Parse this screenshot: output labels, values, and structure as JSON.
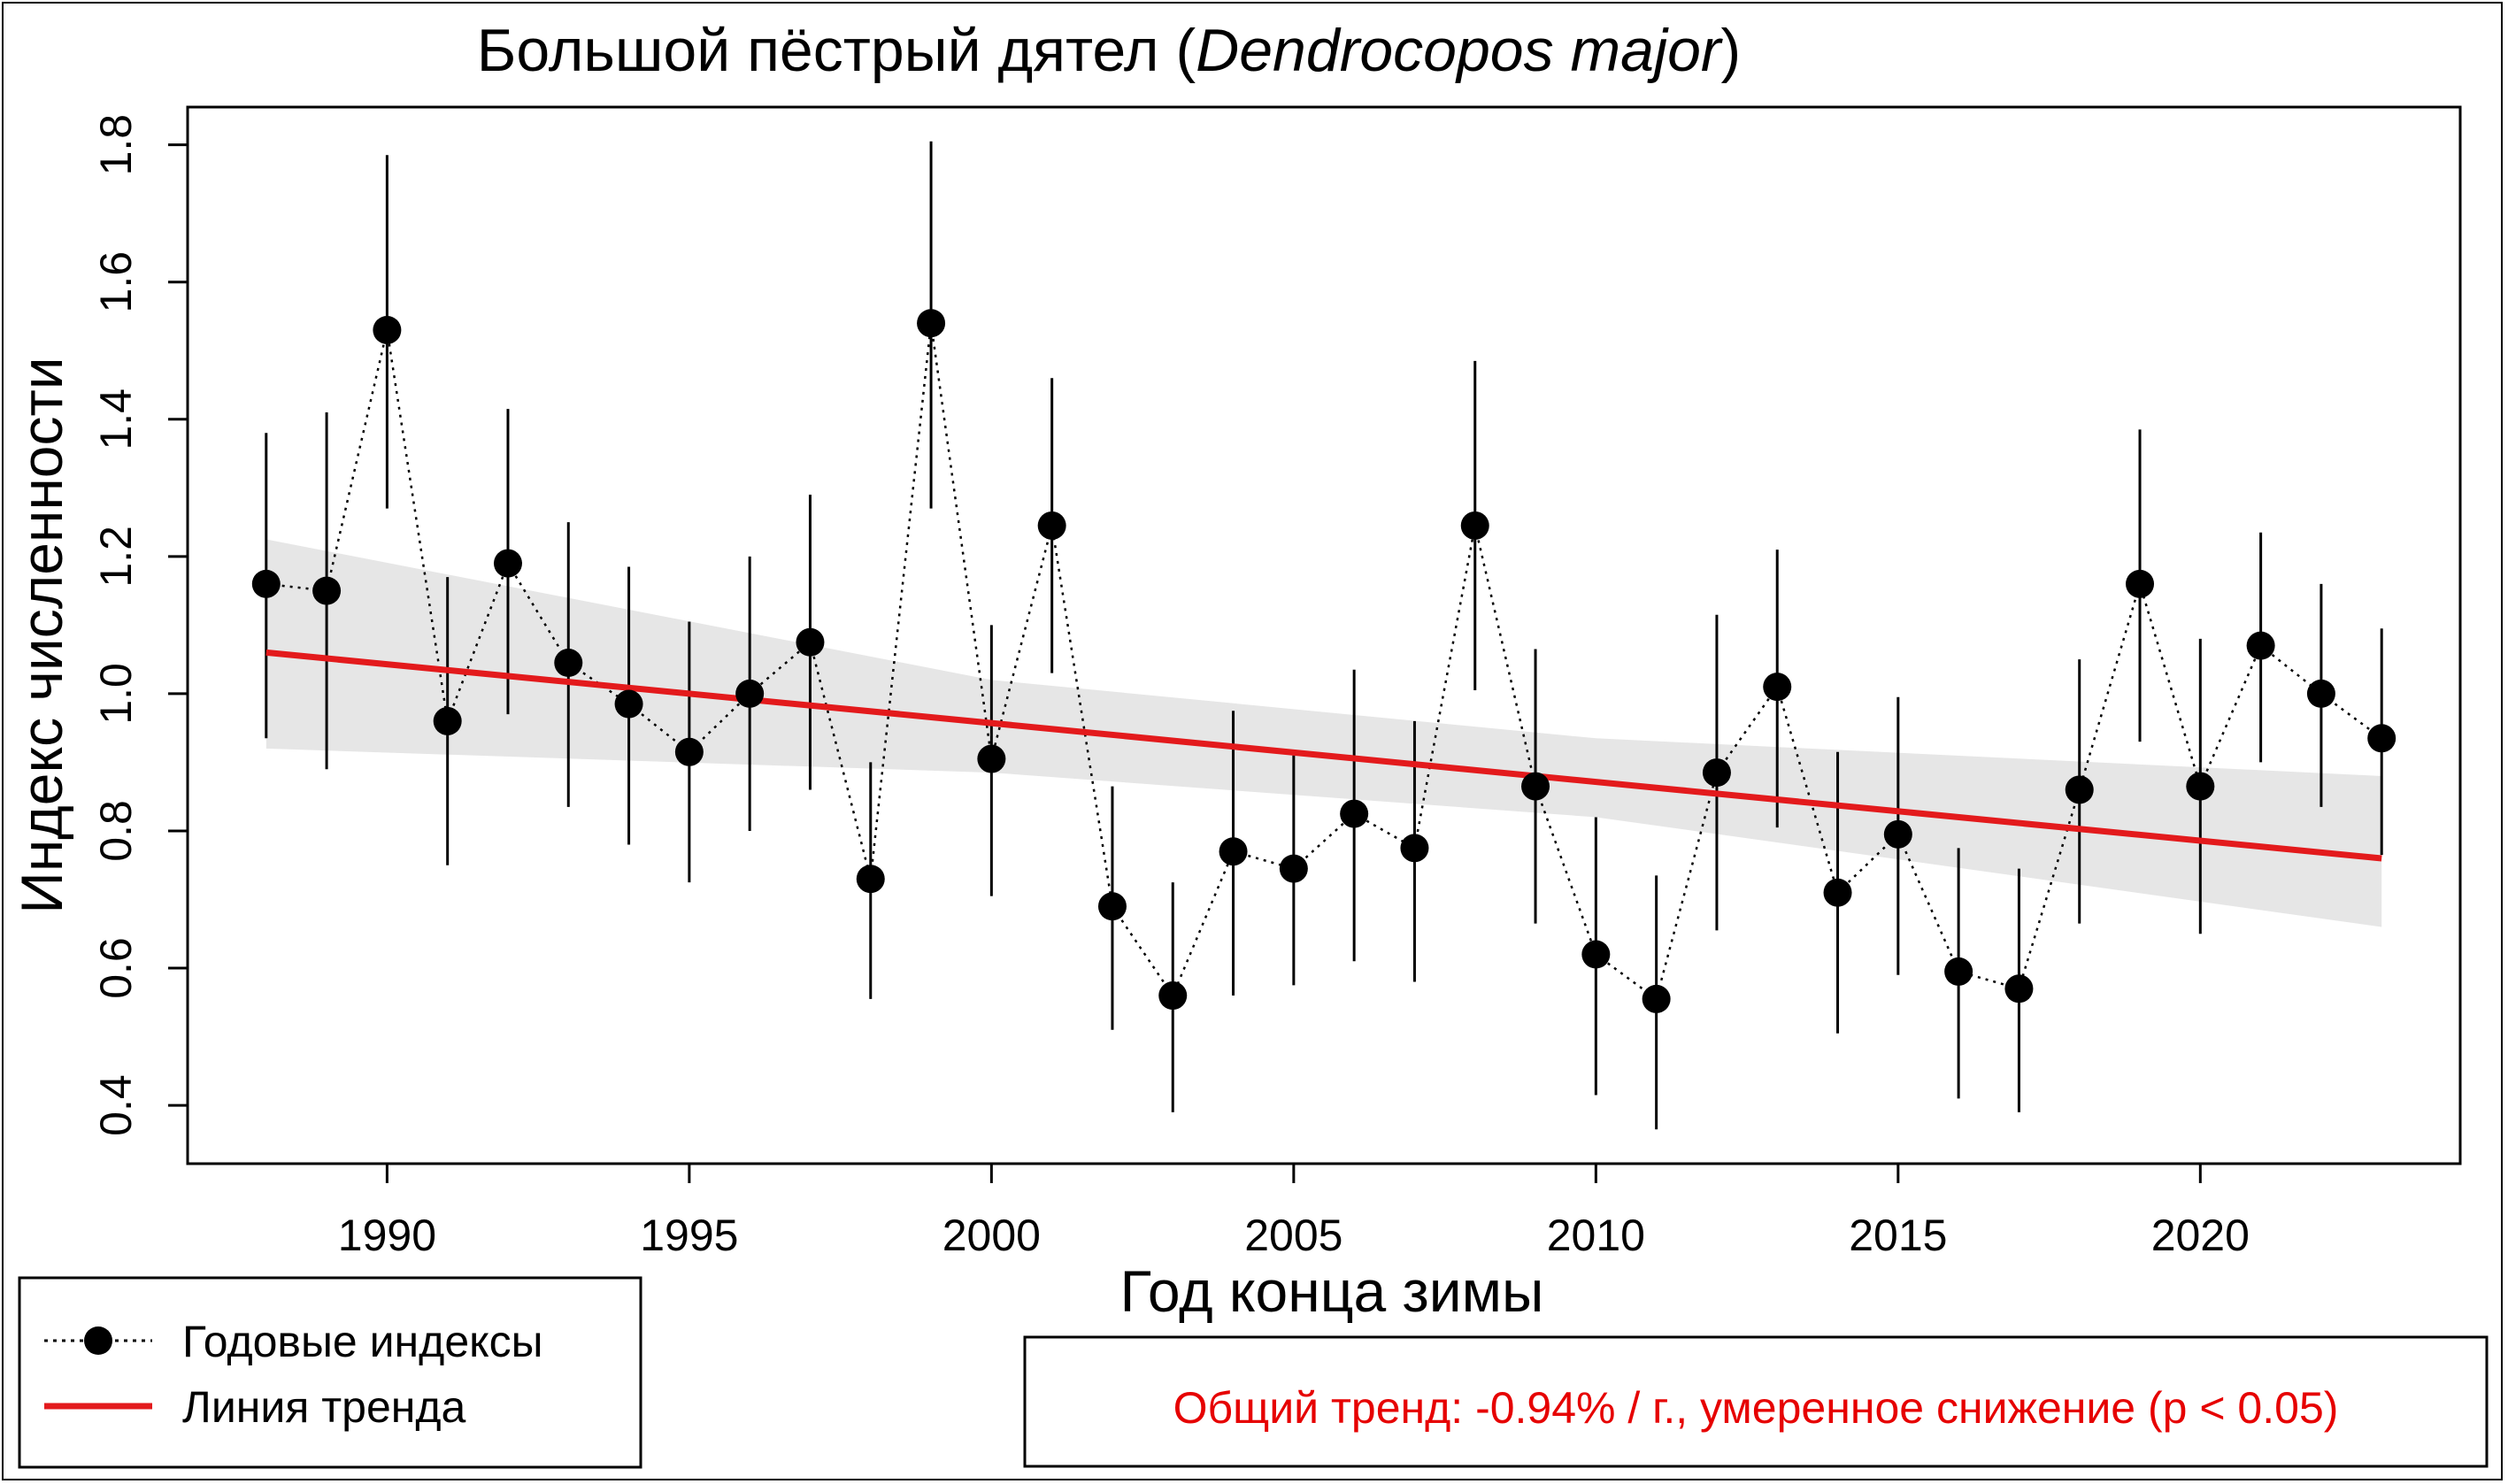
{
  "chart_data": {
    "type": "line",
    "title_main": "Большой пёстрый дятел (",
    "title_species": "Dendrocopos major",
    "title_end": ")",
    "xlabel": "Год конца зимы",
    "ylabel": "Индекс численности",
    "xlim": [
      1986.7,
      2024.3
    ],
    "ylim": [
      0.315,
      1.855
    ],
    "x_ticks": [
      "1990",
      "1995",
      "2000",
      "2005",
      "2010",
      "2015",
      "2020"
    ],
    "y_ticks": [
      "0.4",
      "0.6",
      "0.8",
      "1.0",
      "1.2",
      "1.4",
      "1.6",
      "1.8"
    ],
    "series": [
      {
        "name": "Годовые индексы",
        "years": [
          1988,
          1989,
          1990,
          1991,
          1992,
          1993,
          1994,
          1995,
          1996,
          1997,
          1998,
          1999,
          2000,
          2001,
          2002,
          2003,
          2004,
          2005,
          2006,
          2007,
          2008,
          2009,
          2010,
          2011,
          2012,
          2013,
          2014,
          2015,
          2016,
          2017,
          2018,
          2019,
          2020,
          2021,
          2022,
          2023
        ],
        "values": [
          1.16,
          1.15,
          1.53,
          0.96,
          1.19,
          1.045,
          0.985,
          0.915,
          1.0,
          1.075,
          0.73,
          1.54,
          0.905,
          1.245,
          0.69,
          0.56,
          0.77,
          0.745,
          0.825,
          0.775,
          1.245,
          0.865,
          0.62,
          0.555,
          0.885,
          1.01,
          0.71,
          0.795,
          0.595,
          0.57,
          0.86,
          1.16,
          0.865,
          1.07,
          1.0,
          0.935
        ],
        "lower": [
          0.935,
          0.89,
          1.27,
          0.75,
          0.97,
          0.835,
          0.78,
          0.725,
          0.8,
          0.86,
          0.555,
          1.27,
          0.705,
          1.03,
          0.51,
          0.39,
          0.56,
          0.575,
          0.61,
          0.58,
          1.005,
          0.665,
          0.415,
          0.365,
          0.655,
          0.805,
          0.505,
          0.59,
          0.41,
          0.39,
          0.665,
          0.93,
          0.65,
          0.9,
          0.835,
          0.765
        ],
        "upper": [
          1.38,
          1.41,
          1.785,
          1.17,
          1.415,
          1.25,
          1.185,
          1.105,
          1.2,
          1.29,
          0.9,
          1.805,
          1.1,
          1.46,
          0.865,
          0.725,
          0.975,
          0.91,
          1.035,
          0.96,
          1.485,
          1.065,
          0.82,
          0.735,
          1.115,
          1.21,
          0.915,
          0.995,
          0.775,
          0.745,
          1.05,
          1.385,
          1.08,
          1.235,
          1.16,
          1.095
        ]
      },
      {
        "name": "Линия тренда",
        "trend_start": [
          1988,
          1.06
        ],
        "trend_end": [
          2023,
          0.76
        ],
        "band_lower": [
          [
            1988,
            0.92
          ],
          [
            2000,
            0.885
          ],
          [
            2010,
            0.82
          ],
          [
            2023,
            0.66
          ]
        ],
        "band_upper": [
          [
            1988,
            1.225
          ],
          [
            2000,
            1.02
          ],
          [
            2010,
            0.935
          ],
          [
            2023,
            0.88
          ]
        ]
      }
    ],
    "legend": {
      "points_label": "Годовые индексы",
      "trend_label": "Линия тренда"
    },
    "annotation": "Общий тренд: -0.94% / г., умеренное снижение (p < 0.05)"
  },
  "colors": {
    "points": "#000000",
    "trend": "#e31a1c",
    "band": "#e6e6e6",
    "annotation": "#e60000"
  }
}
